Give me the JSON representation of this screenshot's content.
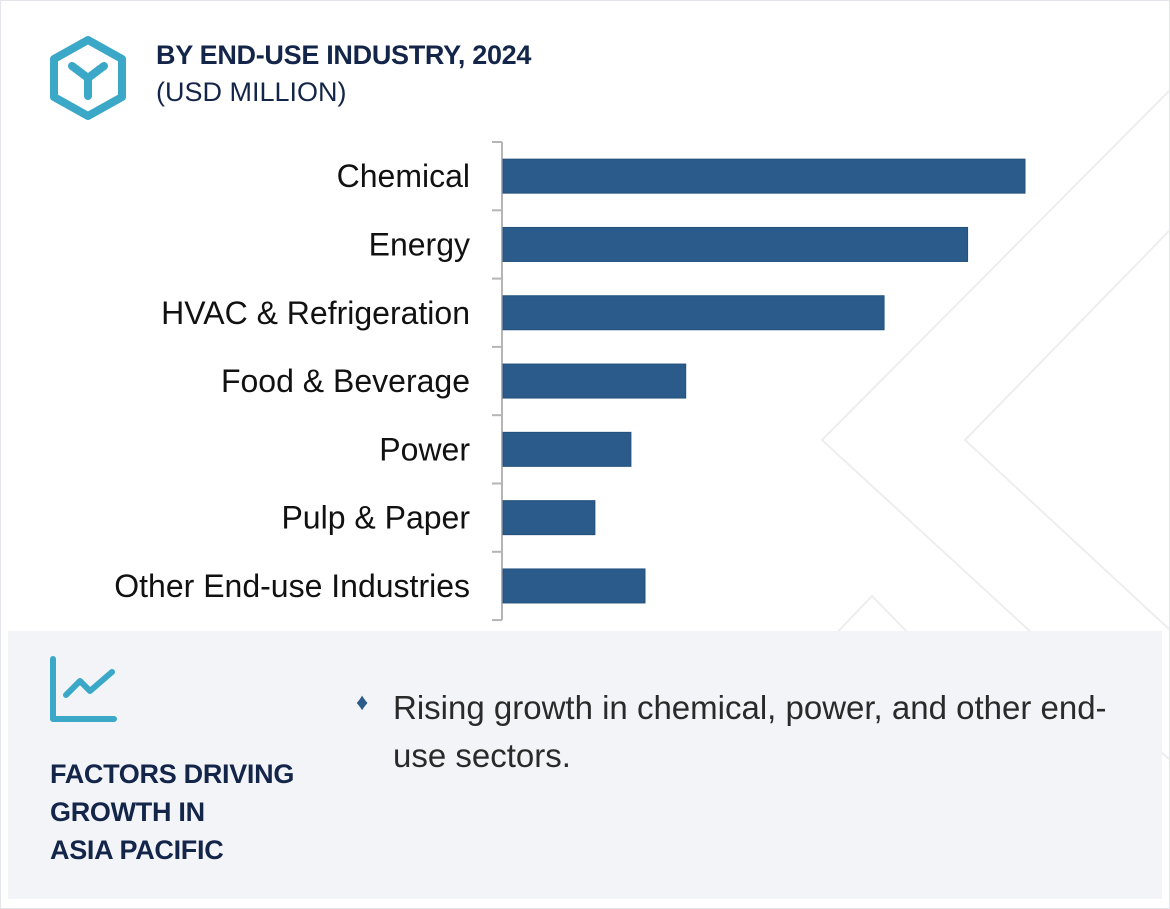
{
  "header": {
    "title": "BY END-USE INDUSTRY, 2024",
    "subtitle": "(USD MILLION)",
    "logo_icon": "hexagon-y-logo-icon"
  },
  "colors": {
    "bar": "#2b5b8a",
    "title": "#14254a",
    "accent": "#3aa8c6",
    "panel_bg": "#f3f4f8",
    "axis": "#b5b5b5"
  },
  "chart_data": {
    "type": "bar",
    "orientation": "horizontal",
    "title": "BY END-USE INDUSTRY, 2024",
    "subtitle": "(USD MILLION)",
    "xlabel": "",
    "ylabel": "",
    "categories": [
      "Chemical",
      "Energy",
      "HVAC & Refrigeration",
      "Food & Beverage",
      "Power",
      "Pulp & Paper",
      "Other End-use Industries"
    ],
    "values": [
      100,
      89,
      73,
      35,
      24.5,
      17.6,
      27.2
    ],
    "value_note": "relative bar lengths (largest = 100); no numeric values or axis ticks shown",
    "xlim": [
      0,
      100
    ],
    "grid": false,
    "legend": "none"
  },
  "panel": {
    "icon": "trend-chart-icon",
    "heading_lines": [
      "FACTORS DRIVING",
      "GROWTH IN",
      "ASIA PACIFIC"
    ],
    "bullets": [
      {
        "icon": "diamond-bullet-icon",
        "text": "Rising growth in chemical, power, and other end-use sectors."
      }
    ]
  }
}
